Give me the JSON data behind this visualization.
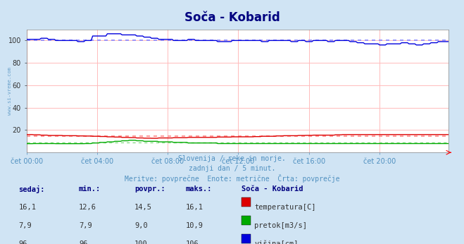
{
  "title": "Soča - Kobarid",
  "bg_color": "#d0e4f4",
  "plot_bg_color": "#ffffff",
  "title_color": "#000080",
  "subtitle_lines": [
    "Slovenija / reke in morje.",
    "zadnji dan / 5 minut.",
    "Meritve: povprečne  Enote: metrične  Črta: povprečje"
  ],
  "subtitle_color": "#5090c0",
  "watermark": "www.si-vreme.com",
  "watermark_color": "#5090c0",
  "xlabel_color": "#5090c0",
  "grid_color_h": "#ffbbbb",
  "grid_color_v": "#ffbbbb",
  "ylim": [
    0,
    110
  ],
  "yticks": [
    20,
    40,
    60,
    80,
    100
  ],
  "n_points": 288,
  "temp_color": "#dd0000",
  "pretok_color": "#00aa00",
  "visina_color": "#0000dd",
  "avg_temp_color": "#ff8888",
  "avg_pretok_color": "#88dd88",
  "avg_visina_color": "#8888ff",
  "temp_avg": 14.5,
  "pretok_avg": 9.0,
  "visina_avg": 100,
  "xtick_positions": [
    0,
    48,
    96,
    144,
    192,
    240
  ],
  "xtick_labels": [
    "čet 00:00",
    "čet 04:00",
    "čet 08:00",
    "čet 12:00",
    "čet 16:00",
    "čet 20:00"
  ],
  "table_header": [
    "sedaj:",
    "min.:",
    "povpr.:",
    "maks.:",
    "Soča - Kobarid"
  ],
  "table_rows": [
    [
      "16,1",
      "12,6",
      "14,5",
      "16,1",
      "temperatura[C]"
    ],
    [
      "7,9",
      "7,9",
      "9,0",
      "10,9",
      "pretok[m3/s]"
    ],
    [
      "96",
      "96",
      "100",
      "106",
      "višina[cm]"
    ]
  ],
  "legend_colors": [
    "#dd0000",
    "#00aa00",
    "#0000dd"
  ]
}
